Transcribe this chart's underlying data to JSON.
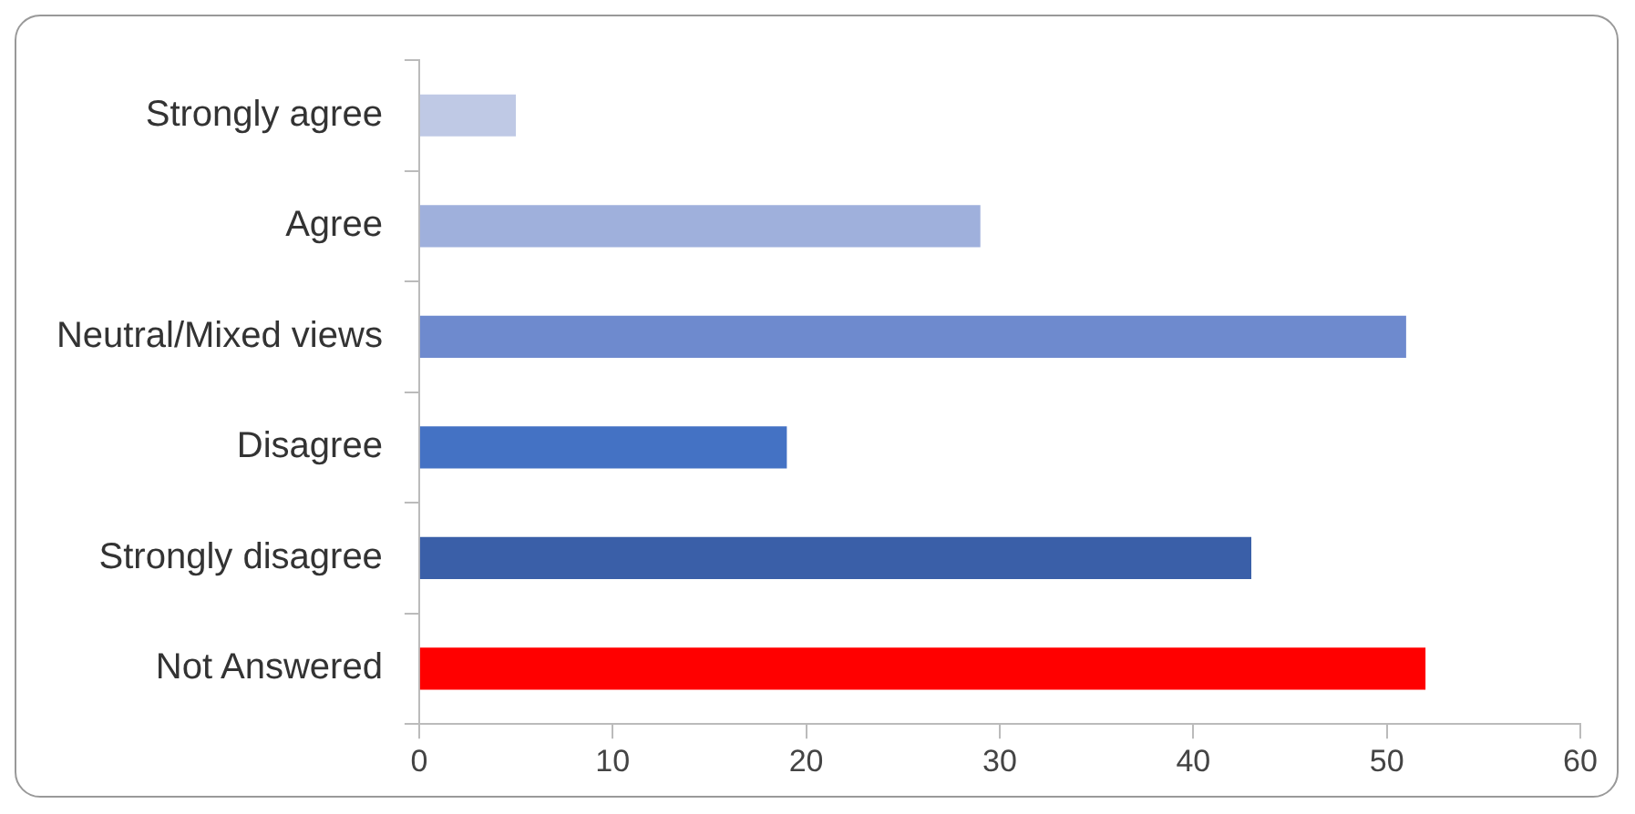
{
  "chart_data": {
    "type": "bar",
    "orientation": "horizontal",
    "categories": [
      "Strongly agree",
      "Agree",
      "Neutral/Mixed views",
      "Disagree",
      "Strongly disagree",
      "Not Answered"
    ],
    "values": [
      5,
      29,
      51,
      19,
      43,
      52
    ],
    "colors": [
      "#bfc9e5",
      "#9fb0dc",
      "#6e8ace",
      "#4472c4",
      "#3a5fa8",
      "#ff0000"
    ],
    "xlim": [
      0,
      60
    ],
    "xticks": [
      0,
      10,
      20,
      30,
      40,
      50,
      60
    ],
    "grid": false,
    "legend": false
  }
}
